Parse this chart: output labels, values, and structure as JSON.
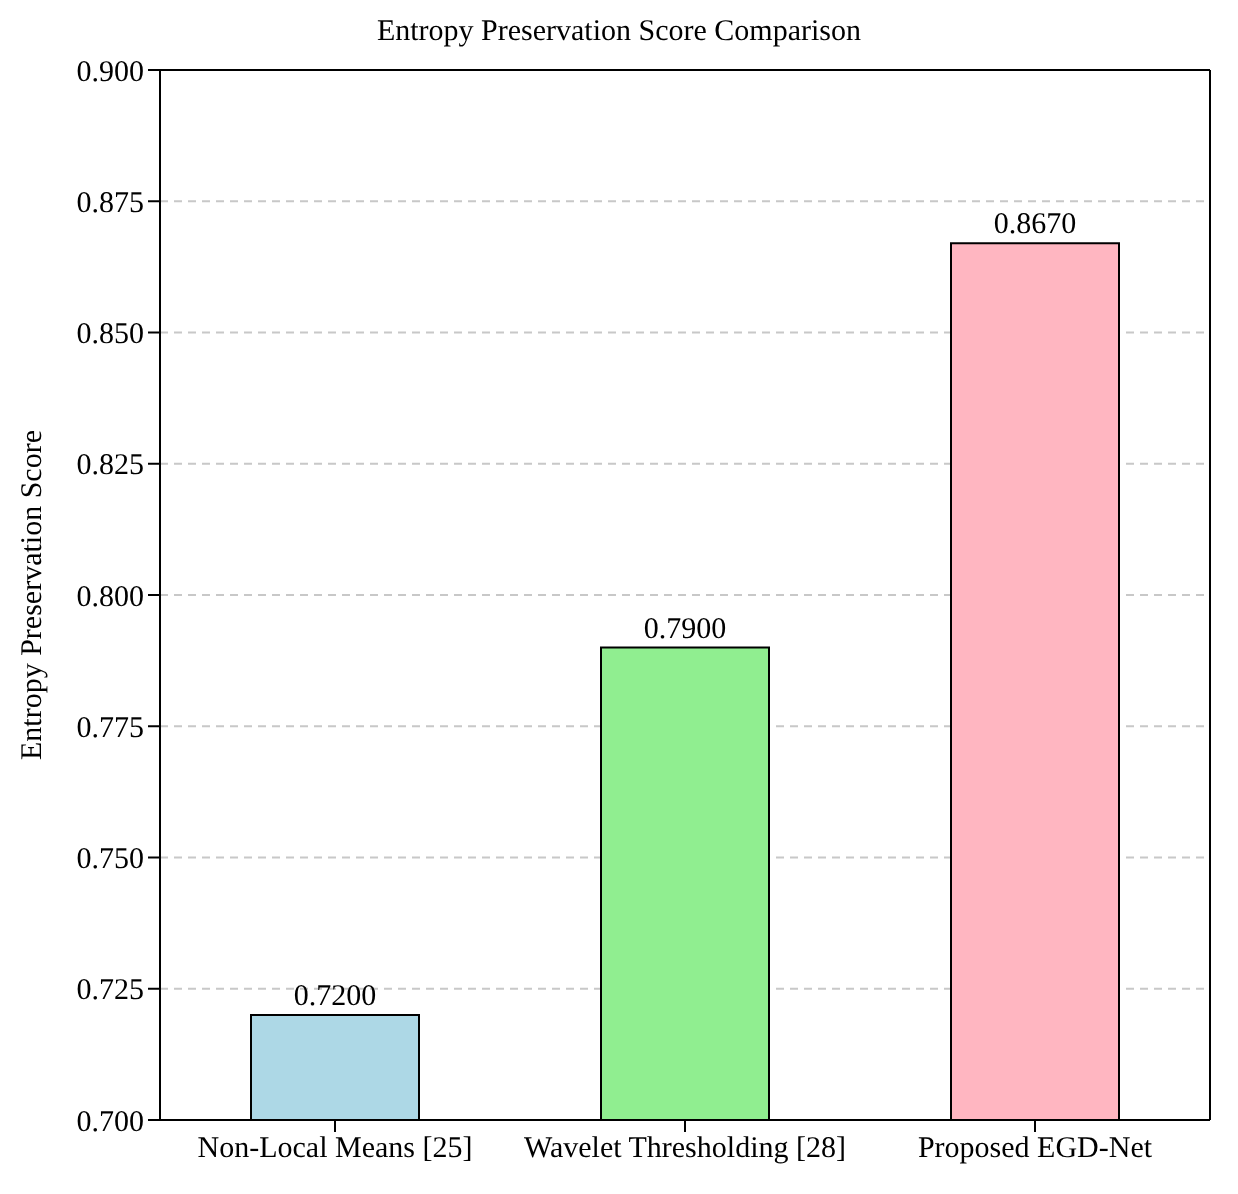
{
  "chart_data": {
    "type": "bar",
    "title": "Entropy Preservation Score Comparison",
    "ylabel": "Entropy Preservation Score",
    "categories": [
      "Non-Local Means [25]",
      "Wavelet Thresholding [28]",
      "Proposed EGD-Net"
    ],
    "values": [
      0.72,
      0.79,
      0.867
    ],
    "colors": [
      "#add8e6",
      "#90ee90",
      "#ffb6c1"
    ],
    "value_labels": [
      "0.7200",
      "0.7900",
      "0.8670"
    ],
    "ylim": [
      0.7,
      0.9
    ],
    "yticks": [
      {
        "value": 0.7,
        "label": "0.700"
      },
      {
        "value": 0.725,
        "label": "0.725"
      },
      {
        "value": 0.75,
        "label": "0.750"
      },
      {
        "value": 0.775,
        "label": "0.775"
      },
      {
        "value": 0.8,
        "label": "0.800"
      },
      {
        "value": 0.825,
        "label": "0.825"
      },
      {
        "value": 0.85,
        "label": "0.850"
      },
      {
        "value": 0.875,
        "label": "0.875"
      },
      {
        "value": 0.9,
        "label": "0.900"
      }
    ],
    "grid": "y"
  }
}
